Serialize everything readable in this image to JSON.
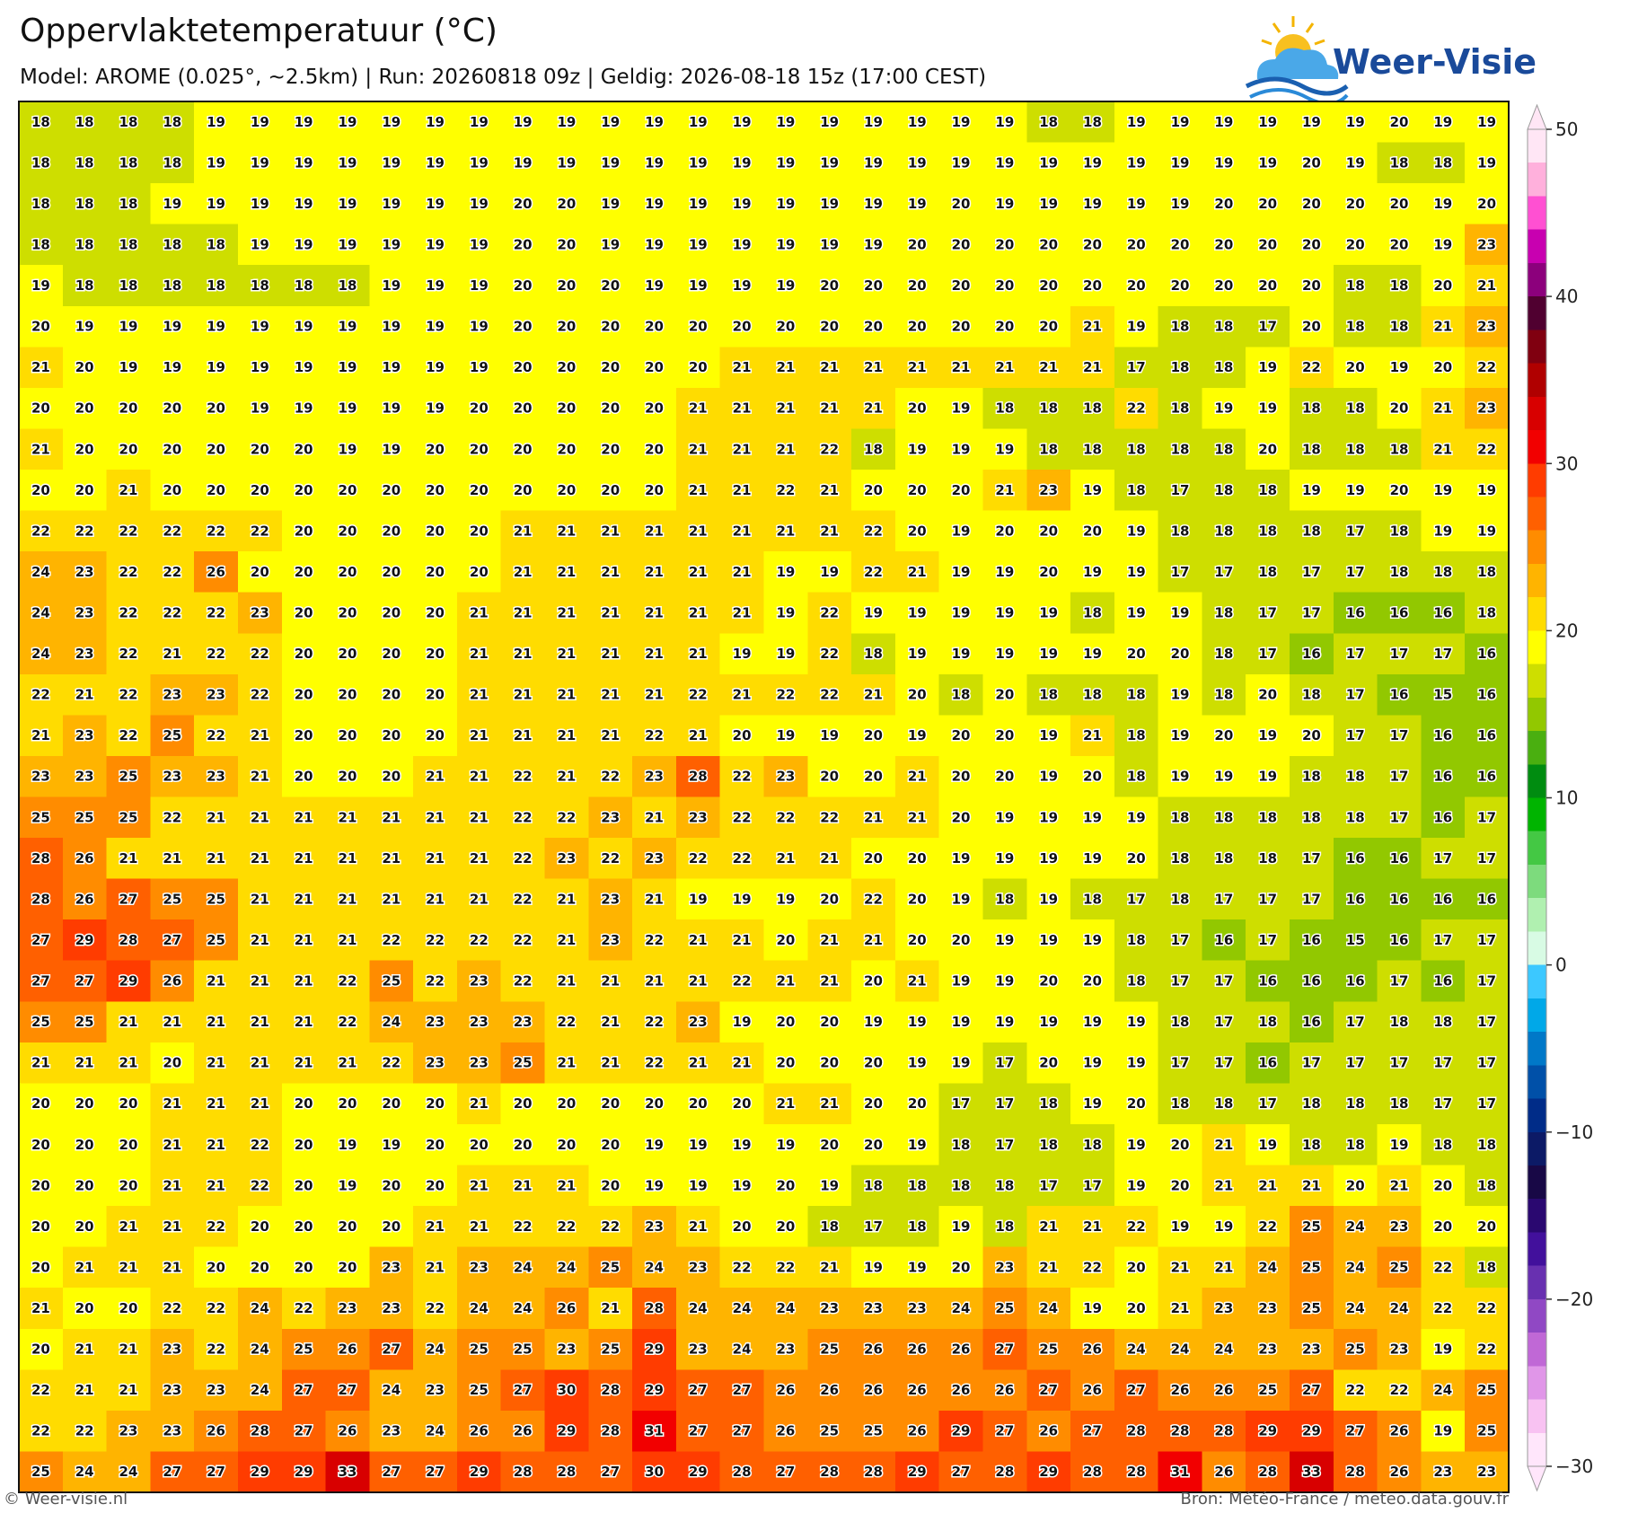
{
  "header": {
    "title": "Oppervlaktetemperatuur (°C)",
    "subtitle": "Model: AROME (0.025°, ~2.5km)  |  Run: 20260818 09z  |  Geldig: 2026-08-18 15z (17:00 CEST)"
  },
  "logo": {
    "text": "Weer-Visie"
  },
  "map": {
    "rows": [
      [
        18,
        18,
        18,
        18,
        19,
        19,
        19,
        19,
        19,
        19,
        19,
        19,
        19,
        19,
        19,
        19,
        19,
        19,
        19,
        19,
        19,
        19,
        19,
        18,
        18,
        19,
        19,
        19,
        19,
        19,
        19,
        20,
        19,
        19
      ],
      [
        18,
        18,
        18,
        18,
        19,
        19,
        19,
        19,
        19,
        19,
        19,
        19,
        19,
        19,
        19,
        19,
        19,
        19,
        19,
        19,
        19,
        19,
        19,
        19,
        19,
        19,
        19,
        19,
        19,
        20,
        19,
        18,
        18,
        19
      ],
      [
        18,
        18,
        18,
        19,
        19,
        19,
        19,
        19,
        19,
        19,
        19,
        20,
        20,
        19,
        19,
        19,
        19,
        19,
        19,
        19,
        19,
        20,
        19,
        19,
        19,
        19,
        19,
        20,
        20,
        20,
        20,
        20,
        19,
        20
      ],
      [
        18,
        18,
        18,
        18,
        18,
        19,
        19,
        19,
        19,
        19,
        19,
        20,
        20,
        19,
        19,
        19,
        19,
        19,
        19,
        19,
        20,
        20,
        20,
        20,
        20,
        20,
        20,
        20,
        20,
        20,
        20,
        20,
        19,
        23
      ],
      [
        19,
        18,
        18,
        18,
        18,
        18,
        18,
        18,
        19,
        19,
        19,
        20,
        20,
        20,
        19,
        19,
        19,
        19,
        20,
        20,
        20,
        20,
        20,
        20,
        20,
        20,
        20,
        20,
        20,
        20,
        18,
        18,
        20,
        21
      ],
      [
        20,
        19,
        19,
        19,
        19,
        19,
        19,
        19,
        19,
        19,
        19,
        20,
        20,
        20,
        20,
        20,
        20,
        20,
        20,
        20,
        20,
        20,
        20,
        20,
        21,
        19,
        18,
        18,
        17,
        20,
        18,
        18,
        21,
        23
      ],
      [
        21,
        20,
        19,
        19,
        19,
        19,
        19,
        19,
        19,
        19,
        19,
        20,
        20,
        20,
        20,
        20,
        21,
        21,
        21,
        21,
        21,
        21,
        21,
        21,
        21,
        17,
        18,
        18,
        19,
        22,
        20,
        19,
        20,
        22
      ],
      [
        20,
        20,
        20,
        20,
        20,
        19,
        19,
        19,
        19,
        19,
        20,
        20,
        20,
        20,
        20,
        21,
        21,
        21,
        21,
        21,
        20,
        19,
        18,
        18,
        18,
        22,
        18,
        19,
        19,
        18,
        18,
        20,
        21,
        23
      ],
      [
        21,
        20,
        20,
        20,
        20,
        20,
        20,
        19,
        19,
        20,
        20,
        20,
        20,
        20,
        20,
        21,
        21,
        21,
        22,
        18,
        19,
        19,
        19,
        18,
        18,
        18,
        18,
        18,
        20,
        18,
        18,
        18,
        21,
        22
      ],
      [
        20,
        20,
        21,
        20,
        20,
        20,
        20,
        20,
        20,
        20,
        20,
        20,
        20,
        20,
        20,
        21,
        21,
        22,
        21,
        20,
        20,
        20,
        21,
        23,
        19,
        18,
        17,
        18,
        18,
        19,
        19,
        20,
        19,
        19
      ],
      [
        22,
        22,
        22,
        22,
        22,
        22,
        20,
        20,
        20,
        20,
        20,
        21,
        21,
        21,
        21,
        21,
        21,
        21,
        21,
        22,
        20,
        19,
        20,
        20,
        20,
        19,
        18,
        18,
        18,
        18,
        17,
        18,
        19,
        19
      ],
      [
        24,
        23,
        22,
        22,
        26,
        20,
        20,
        20,
        20,
        20,
        20,
        21,
        21,
        21,
        21,
        21,
        21,
        19,
        19,
        22,
        21,
        19,
        19,
        20,
        19,
        19,
        17,
        17,
        18,
        17,
        17,
        18,
        18,
        18
      ],
      [
        24,
        23,
        22,
        22,
        22,
        23,
        20,
        20,
        20,
        20,
        21,
        21,
        21,
        21,
        21,
        21,
        21,
        19,
        22,
        19,
        19,
        19,
        19,
        19,
        18,
        19,
        19,
        18,
        17,
        17,
        16,
        16,
        16,
        18
      ],
      [
        24,
        23,
        22,
        21,
        22,
        22,
        20,
        20,
        20,
        20,
        21,
        21,
        21,
        21,
        21,
        21,
        19,
        19,
        22,
        18,
        19,
        19,
        19,
        19,
        19,
        20,
        20,
        18,
        17,
        16,
        17,
        17,
        17,
        16
      ],
      [
        22,
        21,
        22,
        23,
        23,
        22,
        20,
        20,
        20,
        20,
        21,
        21,
        21,
        21,
        21,
        22,
        21,
        22,
        22,
        21,
        20,
        18,
        20,
        18,
        18,
        18,
        19,
        18,
        20,
        18,
        17,
        16,
        15,
        16
      ],
      [
        21,
        23,
        22,
        25,
        22,
        21,
        20,
        20,
        20,
        20,
        21,
        21,
        21,
        21,
        22,
        21,
        20,
        19,
        19,
        20,
        19,
        20,
        20,
        19,
        21,
        18,
        19,
        20,
        19,
        20,
        17,
        17,
        16,
        16
      ],
      [
        23,
        23,
        25,
        23,
        23,
        21,
        20,
        20,
        20,
        21,
        21,
        22,
        21,
        22,
        23,
        28,
        22,
        23,
        20,
        20,
        21,
        20,
        20,
        19,
        20,
        18,
        19,
        19,
        19,
        18,
        18,
        17,
        16,
        16
      ],
      [
        25,
        25,
        25,
        22,
        21,
        21,
        21,
        21,
        21,
        21,
        21,
        22,
        22,
        23,
        21,
        23,
        22,
        22,
        22,
        21,
        21,
        20,
        19,
        19,
        19,
        19,
        18,
        18,
        18,
        18,
        18,
        17,
        16,
        17
      ],
      [
        28,
        26,
        21,
        21,
        21,
        21,
        21,
        21,
        21,
        21,
        21,
        22,
        23,
        22,
        23,
        22,
        22,
        21,
        21,
        20,
        20,
        19,
        19,
        19,
        19,
        20,
        18,
        18,
        18,
        17,
        16,
        16,
        17,
        17
      ],
      [
        28,
        26,
        27,
        25,
        25,
        21,
        21,
        21,
        21,
        21,
        21,
        22,
        21,
        23,
        21,
        19,
        19,
        19,
        20,
        22,
        20,
        19,
        18,
        19,
        18,
        17,
        18,
        17,
        17,
        17,
        16,
        16,
        16,
        16
      ],
      [
        27,
        29,
        28,
        27,
        25,
        21,
        21,
        21,
        22,
        22,
        22,
        22,
        21,
        23,
        22,
        21,
        21,
        20,
        21,
        21,
        20,
        20,
        19,
        19,
        19,
        18,
        17,
        16,
        17,
        16,
        15,
        16,
        17,
        17
      ],
      [
        27,
        27,
        29,
        26,
        21,
        21,
        21,
        22,
        25,
        22,
        23,
        22,
        21,
        21,
        21,
        21,
        22,
        21,
        21,
        20,
        21,
        19,
        19,
        20,
        20,
        18,
        17,
        17,
        16,
        16,
        16,
        17,
        16,
        17
      ],
      [
        25,
        25,
        21,
        21,
        21,
        21,
        21,
        22,
        24,
        23,
        23,
        23,
        22,
        21,
        22,
        23,
        19,
        20,
        20,
        19,
        19,
        19,
        19,
        19,
        19,
        19,
        18,
        17,
        18,
        16,
        17,
        18,
        18,
        17
      ],
      [
        21,
        21,
        21,
        20,
        21,
        21,
        21,
        21,
        22,
        23,
        23,
        25,
        21,
        21,
        22,
        21,
        21,
        20,
        20,
        20,
        19,
        19,
        17,
        20,
        19,
        19,
        17,
        17,
        16,
        17,
        17,
        17,
        17,
        17
      ],
      [
        20,
        20,
        20,
        21,
        21,
        21,
        20,
        20,
        20,
        20,
        21,
        20,
        20,
        20,
        20,
        20,
        20,
        21,
        21,
        20,
        20,
        17,
        17,
        18,
        19,
        20,
        18,
        18,
        17,
        18,
        18,
        18,
        17,
        17
      ],
      [
        20,
        20,
        20,
        21,
        21,
        22,
        20,
        19,
        19,
        20,
        20,
        20,
        20,
        20,
        19,
        19,
        19,
        19,
        20,
        20,
        19,
        18,
        17,
        18,
        18,
        19,
        20,
        21,
        19,
        18,
        18,
        19,
        18,
        18
      ],
      [
        20,
        20,
        20,
        21,
        21,
        22,
        20,
        19,
        20,
        20,
        21,
        21,
        21,
        20,
        19,
        19,
        19,
        20,
        19,
        18,
        18,
        18,
        18,
        17,
        17,
        19,
        20,
        21,
        21,
        21,
        20,
        21,
        20,
        18
      ],
      [
        20,
        20,
        21,
        21,
        22,
        20,
        20,
        20,
        20,
        21,
        21,
        22,
        22,
        22,
        23,
        21,
        20,
        20,
        18,
        17,
        18,
        19,
        18,
        21,
        21,
        22,
        19,
        19,
        22,
        25,
        24,
        23,
        20,
        20
      ],
      [
        20,
        21,
        21,
        21,
        20,
        20,
        20,
        20,
        23,
        21,
        23,
        24,
        24,
        25,
        24,
        23,
        22,
        22,
        21,
        19,
        19,
        20,
        23,
        21,
        22,
        20,
        21,
        21,
        24,
        25,
        24,
        25,
        22,
        18
      ],
      [
        21,
        20,
        20,
        22,
        22,
        24,
        22,
        23,
        23,
        22,
        24,
        24,
        26,
        21,
        28,
        24,
        24,
        24,
        23,
        23,
        23,
        24,
        25,
        24,
        19,
        20,
        21,
        23,
        23,
        25,
        24,
        24,
        22,
        22
      ],
      [
        20,
        21,
        21,
        23,
        22,
        24,
        25,
        26,
        27,
        24,
        25,
        25,
        23,
        25,
        29,
        23,
        24,
        23,
        25,
        26,
        26,
        26,
        27,
        25,
        26,
        24,
        24,
        24,
        23,
        23,
        25,
        23,
        19,
        22
      ],
      [
        22,
        21,
        21,
        23,
        23,
        24,
        27,
        27,
        24,
        23,
        25,
        27,
        30,
        28,
        29,
        27,
        27,
        26,
        26,
        26,
        26,
        26,
        26,
        27,
        26,
        27,
        26,
        26,
        25,
        27,
        22,
        22,
        24,
        25
      ],
      [
        22,
        22,
        23,
        23,
        26,
        28,
        27,
        26,
        23,
        24,
        26,
        26,
        29,
        28,
        31,
        27,
        27,
        26,
        25,
        25,
        26,
        29,
        27,
        26,
        27,
        28,
        28,
        28,
        29,
        29,
        27,
        26,
        19,
        25
      ],
      [
        25,
        24,
        24,
        27,
        27,
        29,
        29,
        33,
        27,
        27,
        29,
        28,
        28,
        27,
        30,
        29,
        28,
        27,
        28,
        28,
        29,
        27,
        28,
        29,
        28,
        28,
        31,
        26,
        28,
        33,
        28,
        26,
        23,
        23
      ]
    ]
  },
  "colorbar": {
    "lim": [
      -30,
      50
    ],
    "ticks": [
      50,
      40,
      30,
      20,
      10,
      0,
      {
        "value": -10,
        "label": "−10"
      },
      {
        "value": -20,
        "label": "−20"
      },
      {
        "value": -30,
        "label": "−30"
      }
    ],
    "colors": [
      "#ffe6f5",
      "#ffb0dc",
      "#ff50d2",
      "#c800b0",
      "#8c007c",
      "#500030",
      "#800010",
      "#b00000",
      "#d80000",
      "#f20000",
      "#ff3c00",
      "#ff6000",
      "#ff8c00",
      "#ffb400",
      "#ffdc00",
      "#ffff00",
      "#cede00",
      "#92c800",
      "#4aaf10",
      "#008c10",
      "#00b400",
      "#44c844",
      "#7ddb7d",
      "#b0f0b0",
      "#d8fbe4",
      "#3cc8ff",
      "#00a8e8",
      "#0078c8",
      "#0050a8",
      "#002c88",
      "#0c1a66",
      "#180846",
      "#2a0870",
      "#42109c",
      "#6830b0",
      "#9048c4",
      "#c068d6",
      "#e096e8",
      "#f8c2f2",
      "#ffe6fb"
    ]
  },
  "footer": {
    "left": "© Weer-visie.nl",
    "right": "Bron: Météo-France / meteo.data.gouv.fr"
  }
}
